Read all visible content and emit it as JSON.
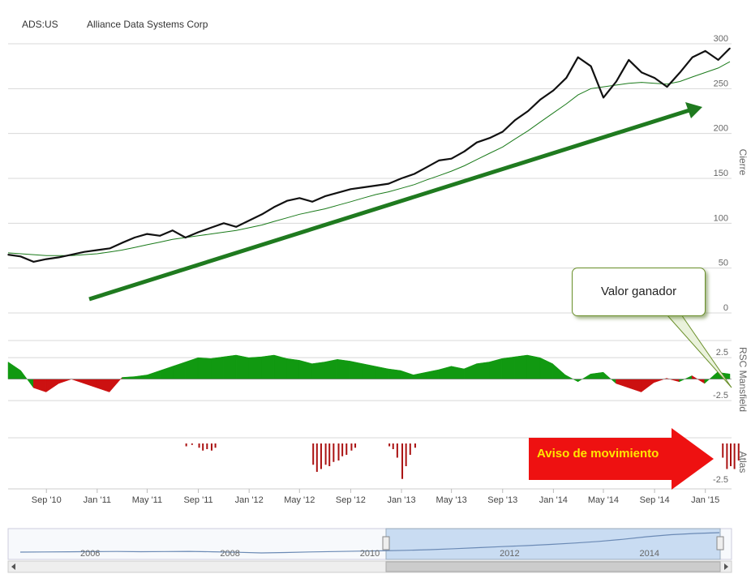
{
  "header": {
    "ticker": "ADS:US",
    "company": "Alliance Data Systems Corp"
  },
  "annotations": {
    "callout": "Valor ganador",
    "warning": "Aviso de movimiento"
  },
  "colors": {
    "price": "#111111",
    "ma": "#1a7a1a",
    "trend_arrow": "#1f7a1f",
    "rsc_positive": "#119911",
    "rsc_negative": "#cc1111",
    "atlas_bars": "#aa1111",
    "warning_arrow": "#ee1111",
    "navigator_fill": "#c9dcf2",
    "callout_border": "#6a8f2a"
  },
  "chart_data": [
    {
      "type": "line",
      "panel": "price",
      "ylabel": "Cierre",
      "ylim": [
        0,
        300
      ],
      "yticks": [
        "0",
        "50",
        "100",
        "150",
        "200",
        "250",
        "300"
      ],
      "xlabels": [
        "Sep '10",
        "Jan '11",
        "May '11",
        "Sep '11",
        "Jan '12",
        "May '12",
        "Sep '12",
        "Jan '13",
        "May '13",
        "Sep '13",
        "Jan '14",
        "May '14",
        "Sep '14",
        "Jan '15"
      ],
      "x": [
        "2010-06-01",
        "2010-07-01",
        "2010-08-01",
        "2010-09-01",
        "2010-10-01",
        "2010-11-01",
        "2010-12-01",
        "2011-01-01",
        "2011-02-01",
        "2011-03-01",
        "2011-04-01",
        "2011-05-01",
        "2011-06-01",
        "2011-07-01",
        "2011-08-01",
        "2011-09-01",
        "2011-10-01",
        "2011-11-01",
        "2011-12-01",
        "2012-01-01",
        "2012-02-01",
        "2012-03-01",
        "2012-04-01",
        "2012-05-01",
        "2012-06-01",
        "2012-07-01",
        "2012-08-01",
        "2012-09-01",
        "2012-10-01",
        "2012-11-01",
        "2012-12-01",
        "2013-01-01",
        "2013-02-01",
        "2013-03-01",
        "2013-04-01",
        "2013-05-01",
        "2013-06-01",
        "2013-07-01",
        "2013-08-01",
        "2013-09-01",
        "2013-10-01",
        "2013-11-01",
        "2013-12-01",
        "2014-01-01",
        "2014-02-01",
        "2014-03-01",
        "2014-04-01",
        "2014-05-01",
        "2014-06-01",
        "2014-07-01",
        "2014-08-01",
        "2014-09-01",
        "2014-10-01",
        "2014-11-01",
        "2014-12-01",
        "2015-01-01",
        "2015-02-01",
        "2015-03-01"
      ],
      "series": [
        {
          "values": [
            65,
            63,
            57,
            60,
            62,
            65,
            68,
            70,
            72,
            78,
            84,
            88,
            86,
            92,
            84,
            90,
            95,
            100,
            96,
            103,
            110,
            118,
            125,
            128,
            124,
            130,
            134,
            138,
            140,
            142,
            144,
            150,
            155,
            162,
            170,
            172,
            180,
            190,
            195,
            202,
            215,
            225,
            238,
            248,
            262,
            285,
            275,
            240,
            258,
            282,
            268,
            262,
            252,
            268,
            285,
            292,
            282,
            295
          ]
        },
        {
          "values": [
            67,
            66,
            65,
            64,
            64,
            64,
            65,
            66,
            68,
            70,
            73,
            76,
            79,
            82,
            84,
            86,
            88,
            90,
            92,
            95,
            98,
            102,
            106,
            110,
            113,
            116,
            120,
            124,
            128,
            132,
            135,
            139,
            143,
            148,
            153,
            158,
            164,
            171,
            178,
            185,
            194,
            203,
            213,
            223,
            233,
            243,
            250,
            252,
            254,
            256,
            257,
            256,
            255,
            258,
            263,
            268,
            273,
            280
          ]
        }
      ]
    },
    {
      "type": "area",
      "panel": "rsc",
      "ylabel": "RSC Mansfield",
      "yticks": [
        "2.5",
        "-2.5"
      ],
      "ylim": [
        -4,
        4.5
      ],
      "values": [
        2,
        1,
        -1,
        -1.5,
        -0.5,
        0,
        -0.5,
        -1,
        -1.5,
        0.2,
        0.3,
        0.5,
        1,
        1.5,
        2,
        2.5,
        2.4,
        2.6,
        2.8,
        2.5,
        2.6,
        2.8,
        2.4,
        2.2,
        1.8,
        2.0,
        2.3,
        2.1,
        1.8,
        1.5,
        1.2,
        1.0,
        0.5,
        0.8,
        1.1,
        1.5,
        1.2,
        1.8,
        2.0,
        2.4,
        2.6,
        2.8,
        2.5,
        1.8,
        0.5,
        -0.3,
        0.6,
        0.8,
        -0.5,
        -1.0,
        -1.5,
        -0.4,
        0.1,
        -0.3,
        0.4,
        -0.5,
        0.8,
        0.6
      ]
    },
    {
      "type": "bar",
      "panel": "atlas",
      "ylabel": "Atlas",
      "yticks": [
        "-2.5"
      ],
      "ylim": [
        -3.2,
        0.4
      ],
      "x": [
        "2011-08-01",
        "2011-08-15",
        "2011-09-01",
        "2011-09-10",
        "2011-09-20",
        "2011-10-01",
        "2011-10-10",
        "2012-06-01",
        "2012-06-10",
        "2012-06-20",
        "2012-07-01",
        "2012-07-10",
        "2012-07-20",
        "2012-08-01",
        "2012-08-10",
        "2012-08-20",
        "2012-09-01",
        "2012-09-10",
        "2012-12-01",
        "2012-12-10",
        "2012-12-20",
        "2013-01-01",
        "2013-01-10",
        "2013-01-20",
        "2013-02-01",
        "2015-02-10",
        "2015-02-20",
        "2015-03-01",
        "2015-03-10",
        "2015-03-20"
      ],
      "values": [
        -0.2,
        -0.1,
        -0.3,
        -0.5,
        -0.4,
        -0.5,
        -0.3,
        -1.5,
        -2.0,
        -1.8,
        -1.5,
        -1.6,
        -1.3,
        -1.2,
        -0.9,
        -0.8,
        -0.5,
        -0.3,
        -0.2,
        -0.4,
        -1.0,
        -2.5,
        -1.6,
        -0.8,
        -0.3,
        -1.0,
        -1.8,
        -1.6,
        -1.8,
        -1.2
      ]
    },
    {
      "type": "area",
      "panel": "navigator",
      "xlabels": [
        "2006",
        "2008",
        "2010",
        "2012",
        "2014"
      ],
      "selected_range": [
        "2010",
        "2015"
      ],
      "values": [
        40,
        42,
        44,
        46,
        48,
        45,
        47,
        49,
        44,
        38,
        30,
        35,
        42,
        47,
        52,
        56,
        62,
        70,
        82,
        95,
        108,
        120,
        135,
        152,
        172,
        198,
        230,
        255,
        270,
        280
      ]
    }
  ]
}
